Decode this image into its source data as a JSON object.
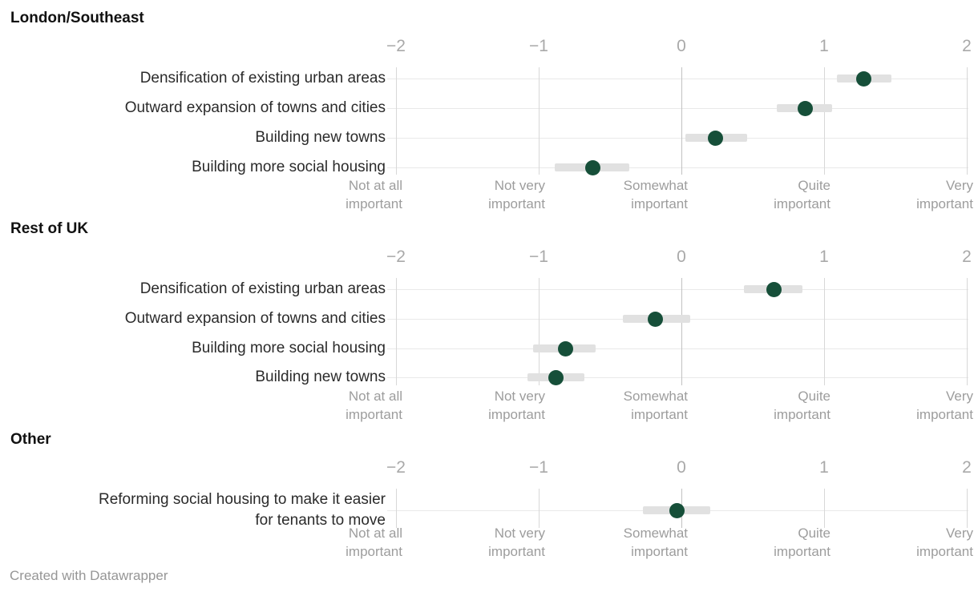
{
  "footer": {
    "credit": "Created with Datawrapper"
  },
  "axis": {
    "tick_values": [
      -2,
      -1,
      0,
      1,
      2
    ],
    "tick_labels": [
      "−2",
      "−1",
      "0",
      "1",
      "2"
    ],
    "category_labels": [
      "Not at all\nimportant",
      "Not very\nimportant",
      "Somewhat\nimportant",
      "Quite\nimportant",
      "Very\nimportant"
    ],
    "xlim": [
      -2,
      2
    ],
    "grid": true
  },
  "colors": {
    "dot": "#164f39",
    "range_bar": "#e1e1e1",
    "grid_horizontal": "#e9e9e9",
    "grid_vertical": "#d8d8d8",
    "grid_zero_line": "#c2c2c2",
    "header_text": "#111111",
    "row_label_text": "#2b2b2b",
    "tick_text": "#a9a9a9",
    "category_text": "#9d9d9d",
    "footer_text": "#969696"
  },
  "chart_data": [
    {
      "type": "scatter",
      "title": "London/Southeast",
      "xlim": [
        -2,
        2
      ],
      "x_ticks": [
        -2,
        -1,
        0,
        1,
        2
      ],
      "points": [
        {
          "label": "Densification of existing urban areas",
          "value": 1.28,
          "range": [
            1.09,
            1.47
          ]
        },
        {
          "label": "Outward expansion of towns and cities",
          "value": 0.87,
          "range": [
            0.67,
            1.06
          ]
        },
        {
          "label": "Building new towns",
          "value": 0.24,
          "range": [
            0.03,
            0.46
          ]
        },
        {
          "label": "Building more social housing",
          "value": -0.62,
          "range": [
            -0.89,
            -0.37
          ]
        }
      ]
    },
    {
      "type": "scatter",
      "title": "Rest of UK",
      "xlim": [
        -2,
        2
      ],
      "x_ticks": [
        -2,
        -1,
        0,
        1,
        2
      ],
      "points": [
        {
          "label": "Densification of existing urban areas",
          "value": 0.65,
          "range": [
            0.44,
            0.85
          ]
        },
        {
          "label": "Outward expansion of towns and cities",
          "value": -0.18,
          "range": [
            -0.41,
            0.06
          ]
        },
        {
          "label": "Building more social housing",
          "value": -0.81,
          "range": [
            -1.04,
            -0.6
          ]
        },
        {
          "label": "Building new towns",
          "value": -0.88,
          "range": [
            -1.08,
            -0.68
          ]
        }
      ]
    },
    {
      "type": "scatter",
      "title": "Other",
      "xlim": [
        -2,
        2
      ],
      "x_ticks": [
        -2,
        -1,
        0,
        1,
        2
      ],
      "points": [
        {
          "label": "Reforming social housing to make it easier\nfor tenants to move",
          "value": -0.03,
          "range": [
            -0.27,
            0.2
          ]
        }
      ]
    }
  ]
}
